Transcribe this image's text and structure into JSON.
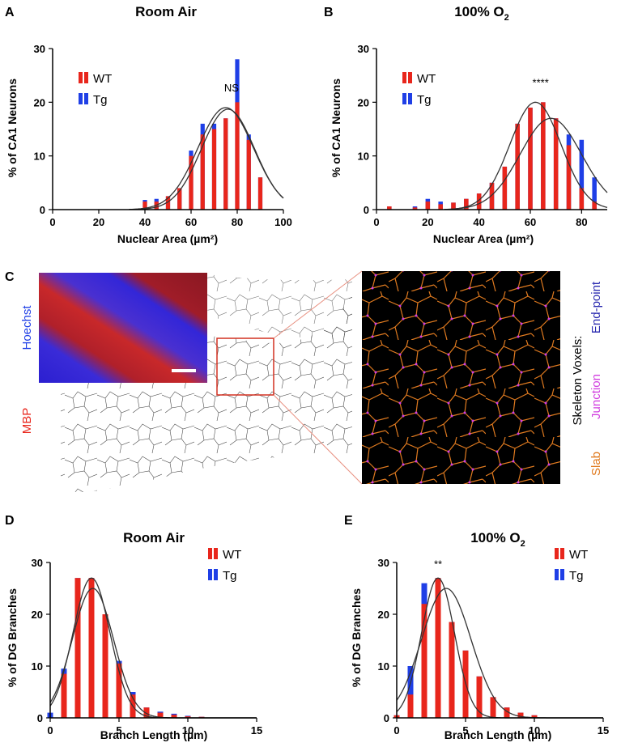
{
  "colors": {
    "wt": "#e8261c",
    "tg": "#1f3fe6",
    "slab": "#e07a1f",
    "junction": "#d13fe0",
    "endpoint": "#2a2ab0"
  },
  "chart_data": [
    {
      "id": "A",
      "type": "bar",
      "panel_label": "A",
      "title": "Room Air",
      "xlabel": "Nuclear Area (µm²)",
      "ylabel": "% of CA1 Neurons",
      "xlim": [
        0,
        100
      ],
      "ylim": [
        0,
        30
      ],
      "xticks": [
        0,
        20,
        40,
        60,
        80,
        100
      ],
      "yticks": [
        0,
        10,
        20,
        30
      ],
      "legend": [
        "WT",
        "Tg"
      ],
      "annotation": "NS",
      "annotation_x": 77.5,
      "annotation_y": 22,
      "series": [
        {
          "name": "WT",
          "x": [
            40,
            45,
            50,
            55,
            60,
            65,
            70,
            75,
            80,
            85,
            90
          ],
          "values": [
            1.5,
            1.5,
            2.5,
            4,
            10,
            14,
            15,
            17,
            20,
            13,
            6
          ]
        },
        {
          "name": "Tg",
          "x": [
            40,
            45,
            50,
            55,
            60,
            65,
            70,
            75,
            80,
            85,
            90
          ],
          "values": [
            1.8,
            2,
            2.5,
            4,
            11,
            16,
            16,
            17,
            28,
            14,
            6
          ]
        }
      ],
      "fits": [
        {
          "mu": 75,
          "sigma": 12,
          "amp": 19
        },
        {
          "mu": 76,
          "sigma": 11.5,
          "amp": 18.7
        }
      ]
    },
    {
      "id": "B",
      "type": "bar",
      "panel_label": "B",
      "title": "100% O",
      "title_sub": "2",
      "xlabel": "Nuclear Area (µm²)",
      "ylabel": "% of CA1 Neurons",
      "xlim": [
        0,
        90
      ],
      "ylim": [
        0,
        30
      ],
      "xticks": [
        0,
        20,
        40,
        60,
        80
      ],
      "yticks": [
        0,
        10,
        20,
        30
      ],
      "legend": [
        "WT",
        "Tg"
      ],
      "annotation": "****",
      "annotation_x": 64,
      "annotation_y": 23,
      "series": [
        {
          "name": "WT",
          "x": [
            5,
            15,
            20,
            25,
            30,
            35,
            40,
            45,
            50,
            55,
            60,
            65,
            70,
            75,
            80,
            85
          ],
          "values": [
            0.6,
            0.4,
            1.5,
            1,
            1.3,
            2,
            3,
            5,
            8,
            16,
            19,
            20,
            17,
            12,
            4,
            1.5
          ]
        },
        {
          "name": "Tg",
          "x": [
            5,
            15,
            20,
            25,
            30,
            35,
            40,
            45,
            50,
            55,
            60,
            65,
            70,
            75,
            80,
            85
          ],
          "values": [
            0.6,
            0.6,
            2,
            1.5,
            1.3,
            2,
            3,
            5,
            8,
            16,
            19,
            20,
            17,
            14,
            13,
            6
          ]
        }
      ],
      "fits": [
        {
          "mu": 62,
          "sigma": 10,
          "amp": 20
        },
        {
          "mu": 68,
          "sigma": 12,
          "amp": 17
        }
      ]
    },
    {
      "id": "D",
      "type": "bar",
      "panel_label": "D",
      "title": "Room Air",
      "xlabel": "Branch Length (µm)",
      "ylabel": "% of DG Branches",
      "xlim": [
        0,
        15
      ],
      "ylim": [
        0,
        30
      ],
      "xticks": [
        0,
        5,
        10,
        15
      ],
      "yticks": [
        0,
        10,
        20,
        30
      ],
      "legend": [
        "WT",
        "Tg"
      ],
      "annotation": "",
      "series": [
        {
          "name": "WT",
          "x": [
            1,
            2,
            3,
            4,
            5,
            6,
            7,
            8,
            9,
            10,
            11
          ],
          "values": [
            8.5,
            27,
            27,
            20,
            10.5,
            4.5,
            2,
            1,
            0.6,
            0.3,
            0.2
          ]
        },
        {
          "name": "Tg",
          "x": [
            0,
            1,
            2,
            3,
            4,
            5,
            6,
            7,
            8,
            9,
            10,
            11
          ],
          "values": [
            1,
            9.5,
            27,
            27,
            20,
            11,
            5,
            2,
            1.2,
            0.8,
            0.4,
            0.2
          ]
        }
      ],
      "fits": [
        {
          "mu": 3,
          "sigma": 1.35,
          "amp": 27
        },
        {
          "mu": 3.1,
          "sigma": 1.5,
          "amp": 25
        }
      ]
    },
    {
      "id": "E",
      "type": "bar",
      "panel_label": "E",
      "title": "100% O",
      "title_sub": "2",
      "xlabel": "Branch Length (µm)",
      "ylabel": "% of DG Branches",
      "xlim": [
        0,
        15
      ],
      "ylim": [
        0,
        30
      ],
      "xticks": [
        0,
        5,
        10,
        15
      ],
      "yticks": [
        0,
        10,
        20,
        30
      ],
      "legend": [
        "WT",
        "Tg"
      ],
      "annotation": "**",
      "annotation_x": 3,
      "annotation_y": 29,
      "series": [
        {
          "name": "WT",
          "x": [
            0,
            1,
            2,
            3,
            4,
            5,
            6,
            7,
            8,
            9,
            10
          ],
          "values": [
            0.5,
            4.5,
            22,
            27,
            18.5,
            13,
            8,
            4,
            2,
            1,
            0.5
          ]
        },
        {
          "name": "Tg",
          "x": [
            0,
            1,
            2,
            3,
            4,
            5,
            6,
            7,
            8,
            9,
            10
          ],
          "values": [
            0.5,
            10,
            26,
            27,
            18.5,
            13,
            8,
            4,
            2,
            1,
            0.5
          ]
        }
      ],
      "fits": [
        {
          "mu": 3,
          "sigma": 1.2,
          "amp": 27
        },
        {
          "mu": 3.6,
          "sigma": 1.8,
          "amp": 25
        }
      ]
    }
  ],
  "panel_c": {
    "label": "C",
    "stain_labels": {
      "hoechst": "Hoechst",
      "mbp": "MBP"
    },
    "skeleton_title": "Skeleton Voxels:",
    "voxel_types": {
      "endpoint": "End-point",
      "junction": "Junction",
      "slab": "Slab"
    }
  }
}
